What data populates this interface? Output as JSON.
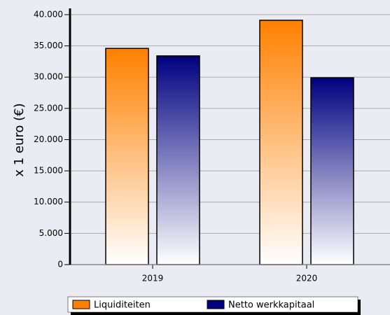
{
  "chart_data": {
    "type": "bar",
    "y_label": "x 1 euro (€)",
    "categories": [
      "2019",
      "2020"
    ],
    "series": [
      {
        "name": "Liquiditeiten",
        "color": "#ff8000",
        "values": [
          34600,
          39100
        ]
      },
      {
        "name": "Netto werkkapitaal",
        "color": "#000080",
        "values": [
          33400,
          29900
        ]
      }
    ],
    "ylim": [
      0,
      41000
    ],
    "yticks": [
      0,
      {
        "value": 5000,
        "label": "5.000"
      },
      {
        "value": 10000,
        "label": "10.000"
      },
      {
        "value": 15000,
        "label": "15.000"
      },
      {
        "value": 20000,
        "label": "20.000"
      },
      {
        "value": 25000,
        "label": "25.000"
      },
      {
        "value": 30000,
        "label": "30.000"
      },
      {
        "value": 35000,
        "label": "35.000"
      },
      {
        "value": 40000,
        "label": "40.000"
      }
    ],
    "grid": true
  }
}
